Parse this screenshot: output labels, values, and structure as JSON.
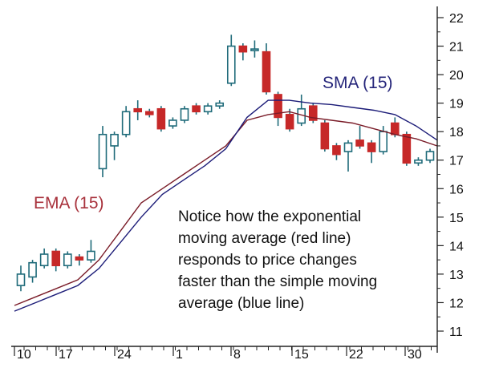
{
  "chart_data": {
    "type": "candlestick",
    "ylim": [
      10.5,
      22.6
    ],
    "y_ticks": [
      "22",
      "21",
      "20",
      "19",
      "18",
      "17",
      "16",
      "15",
      "14",
      "13",
      "12",
      "11"
    ],
    "x_tick_labels": [
      "10",
      "17",
      "24",
      "1",
      "8",
      "15",
      "22",
      "30"
    ],
    "candles": [
      {
        "o": 12.6,
        "c": 13.0,
        "h": 13.3,
        "l": 12.4
      },
      {
        "o": 12.9,
        "c": 13.4,
        "h": 13.5,
        "l": 12.7
      },
      {
        "o": 13.3,
        "c": 13.7,
        "h": 13.9,
        "l": 13.2
      },
      {
        "o": 13.8,
        "c": 13.3,
        "h": 13.9,
        "l": 13.1
      },
      {
        "o": 13.3,
        "c": 13.7,
        "h": 13.8,
        "l": 13.2
      },
      {
        "o": 13.6,
        "c": 13.5,
        "h": 13.7,
        "l": 13.3
      },
      {
        "o": 13.5,
        "c": 13.8,
        "h": 14.2,
        "l": 13.4
      },
      {
        "o": 16.7,
        "c": 17.9,
        "h": 18.2,
        "l": 16.4
      },
      {
        "o": 17.5,
        "c": 17.9,
        "h": 18.0,
        "l": 17.0
      },
      {
        "o": 17.9,
        "c": 18.7,
        "h": 18.9,
        "l": 17.8
      },
      {
        "o": 18.8,
        "c": 18.7,
        "h": 19.1,
        "l": 18.4
      },
      {
        "o": 18.7,
        "c": 18.6,
        "h": 18.8,
        "l": 18.5
      },
      {
        "o": 18.8,
        "c": 18.1,
        "h": 18.9,
        "l": 18.0
      },
      {
        "o": 18.2,
        "c": 18.4,
        "h": 18.5,
        "l": 18.1
      },
      {
        "o": 18.4,
        "c": 18.8,
        "h": 18.9,
        "l": 18.3
      },
      {
        "o": 18.9,
        "c": 18.7,
        "h": 19.0,
        "l": 18.6
      },
      {
        "o": 18.7,
        "c": 18.9,
        "h": 19.0,
        "l": 18.6
      },
      {
        "o": 18.9,
        "c": 19.0,
        "h": 19.1,
        "l": 18.8
      },
      {
        "o": 19.7,
        "c": 21.0,
        "h": 21.4,
        "l": 19.6
      },
      {
        "o": 21.0,
        "c": 20.8,
        "h": 21.1,
        "l": 20.5
      },
      {
        "o": 20.9,
        "c": 20.9,
        "h": 21.2,
        "l": 20.6
      },
      {
        "o": 20.8,
        "c": 19.4,
        "h": 21.1,
        "l": 19.3
      },
      {
        "o": 19.3,
        "c": 18.5,
        "h": 19.4,
        "l": 18.2
      },
      {
        "o": 18.6,
        "c": 18.1,
        "h": 18.8,
        "l": 18.0
      },
      {
        "o": 18.3,
        "c": 18.8,
        "h": 19.3,
        "l": 18.2
      },
      {
        "o": 18.9,
        "c": 18.4,
        "h": 19.0,
        "l": 18.3
      },
      {
        "o": 18.3,
        "c": 17.4,
        "h": 18.4,
        "l": 17.3
      },
      {
        "o": 17.5,
        "c": 17.2,
        "h": 17.6,
        "l": 17.0
      },
      {
        "o": 17.3,
        "c": 17.6,
        "h": 17.7,
        "l": 16.6
      },
      {
        "o": 17.7,
        "c": 17.5,
        "h": 18.2,
        "l": 17.4
      },
      {
        "o": 17.6,
        "c": 17.3,
        "h": 17.7,
        "l": 16.9
      },
      {
        "o": 17.3,
        "c": 18.0,
        "h": 18.2,
        "l": 17.2
      },
      {
        "o": 18.3,
        "c": 17.9,
        "h": 18.5,
        "l": 17.8
      },
      {
        "o": 17.9,
        "c": 16.9,
        "h": 18.0,
        "l": 16.8
      },
      {
        "o": 16.9,
        "c": 17.0,
        "h": 17.1,
        "l": 16.8
      },
      {
        "o": 17.0,
        "c": 17.3,
        "h": 17.4,
        "l": 16.9
      }
    ],
    "ema": {
      "name": "EMA (15)",
      "color": "#7a1c28",
      "values": [
        11.9,
        12.2,
        12.5,
        12.8,
        13.5,
        14.5,
        15.5,
        16.0,
        16.5,
        17.0,
        17.5,
        18.4,
        18.6,
        18.7,
        18.5,
        18.4,
        18.3,
        18.1,
        17.9,
        17.75,
        17.5
      ]
    },
    "sma": {
      "name": "SMA (15)",
      "color": "#1c1c78",
      "values": [
        11.7,
        12.0,
        12.3,
        12.6,
        13.2,
        14.1,
        15.0,
        15.8,
        16.3,
        16.8,
        17.4,
        18.5,
        19.1,
        19.1,
        19.0,
        18.95,
        18.85,
        18.75,
        18.6,
        18.2,
        17.7
      ]
    },
    "annotation": "Notice how the exponential moving average (red line) responds to price changes faster than the simple moving average (blue line)",
    "colors": {
      "up_candle": "#1f6b7a",
      "down_candle": "#c62828",
      "axis": "#222222",
      "ema_label": "#a8323c",
      "sma_label": "#25257a"
    }
  }
}
